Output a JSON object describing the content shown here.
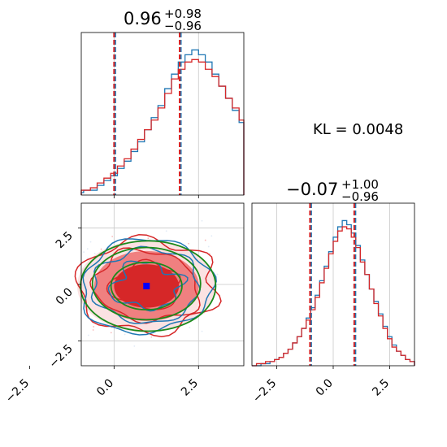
{
  "chart_data": {
    "type": "corner",
    "colors": {
      "blue": "#1f77b4",
      "red": "#d62728",
      "red_fill": "#f08080",
      "green": "#1a8a1a",
      "marker": "#0000ff"
    },
    "annotation": "KL = 0.0048",
    "params": [
      {
        "title_main": "0.96",
        "title_plus": "+0.98",
        "title_minus": "−0.96",
        "median": 0.96,
        "q_low": 0.0,
        "q_high": 1.94,
        "range": [
          -0.97,
          3.84
        ],
        "ticks": [
          -2.5,
          0.0,
          2.5
        ],
        "tick_labels": [
          "−2.5",
          "0.0",
          "2.5"
        ]
      },
      {
        "title_main": "−0.07",
        "title_plus": "+1.00",
        "title_minus": "−0.96",
        "median": -0.07,
        "q_low": -1.03,
        "q_high": 0.93,
        "range": [
          -3.6,
          3.6
        ],
        "ticks": [
          -2.5,
          0.0,
          2.5
        ],
        "tick_labels": [
          "−2.5",
          "0.0",
          "2.5"
        ]
      }
    ],
    "hist1": {
      "x_start": -2.3,
      "bin_width": 0.2,
      "blue": [
        0,
        0,
        0,
        0,
        0,
        1,
        1,
        2,
        2,
        4,
        6,
        8,
        11,
        14,
        18,
        22,
        27,
        32,
        37,
        44,
        50,
        55,
        58,
        60,
        58,
        55,
        50,
        45,
        40,
        35,
        30,
        25,
        20,
        16,
        12,
        8,
        6,
        4,
        3,
        2,
        1,
        0,
        0,
        0,
        0
      ],
      "red": [
        1,
        0,
        0,
        0,
        1,
        1,
        2,
        2,
        3,
        5,
        7,
        9,
        12,
        15,
        19,
        23,
        27,
        31,
        36,
        42,
        48,
        52,
        55,
        56,
        55,
        52,
        49,
        45,
        40,
        36,
        31,
        26,
        21,
        17,
        13,
        9,
        6,
        4,
        3,
        2,
        1,
        0,
        0,
        0,
        0
      ]
    },
    "hist2": {
      "x_start": -3.6,
      "bin_width": 0.2,
      "blue": [
        0,
        0,
        1,
        1,
        2,
        3,
        4,
        6,
        8,
        11,
        14,
        18,
        23,
        28,
        34,
        41,
        48,
        55,
        62,
        67,
        70,
        68,
        64,
        58,
        51,
        44,
        37,
        31,
        25,
        19,
        14,
        10,
        7,
        5,
        3,
        2,
        1,
        0
      ],
      "red": [
        0,
        1,
        1,
        2,
        2,
        3,
        4,
        6,
        8,
        11,
        14,
        18,
        22,
        27,
        33,
        40,
        47,
        54,
        60,
        65,
        67,
        66,
        62,
        57,
        50,
        44,
        37,
        30,
        24,
        18,
        13,
        9,
        7,
        5,
        3,
        2,
        1,
        0
      ]
    },
    "contours_2d": {
      "center": [
        0.96,
        -0.07
      ],
      "blue_sigmas": [
        1.0,
        1.6,
        2.0
      ],
      "red_sigmas": [
        1.0,
        1.55,
        2.05
      ],
      "green_sigmas": [
        1.05,
        1.6,
        2.0
      ],
      "fill_levels": [
        0.6,
        1.55,
        2.05
      ]
    }
  }
}
